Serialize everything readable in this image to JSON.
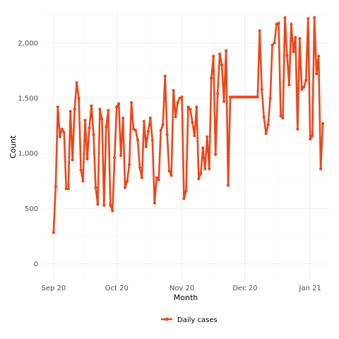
{
  "chart_data": {
    "type": "line",
    "xlabel": "Month",
    "ylabel": "Count",
    "x_start": "2020-09-01",
    "x_end": "2021-01-05",
    "x_range": [
      "2020-08-26",
      "2021-01-10"
    ],
    "ylim": [
      -150,
      2280
    ],
    "y_ticks": [
      0,
      500,
      1000,
      1500,
      2000
    ],
    "y_tick_labels": [
      "0",
      "500",
      "1,000",
      "1,500",
      "2,000"
    ],
    "x_ticks": [
      "2020-09-01",
      "2020-10-01",
      "2020-11-01",
      "2020-12-01",
      "2021-01-01"
    ],
    "x_tick_labels": [
      "Sep 20",
      "Oct 20",
      "Nov 20",
      "Dec 20",
      "Jan 21"
    ],
    "grid": true,
    "legend_position": "bottom",
    "color": "#E8481C",
    "series": [
      {
        "name": "Daily cases",
        "values": [
          285,
          700,
          1420,
          1150,
          1220,
          1190,
          680,
          680,
          1380,
          940,
          1400,
          1640,
          1500,
          850,
          750,
          1300,
          950,
          1230,
          1430,
          1170,
          690,
          540,
          1400,
          1310,
          530,
          1240,
          1390,
          530,
          480,
          960,
          1420,
          1450,
          980,
          1320,
          690,
          750,
          900,
          1460,
          1220,
          1210,
          1120,
          870,
          780,
          1290,
          1060,
          1200,
          1320,
          1120,
          550,
          780,
          760,
          1210,
          1260,
          1700,
          1170,
          840,
          800,
          1570,
          1330,
          1460,
          1500,
          1510,
          590,
          660,
          1420,
          1400,
          1280,
          1160,
          1420,
          770,
          820,
          1050,
          860,
          1150,
          860,
          1680,
          1880,
          990,
          1540,
          1900,
          1800,
          1470,
          1930,
          710,
          1510,
          1510,
          1510,
          1510,
          1510,
          1510,
          1510,
          1510,
          1510,
          1510,
          1510,
          1510,
          1510,
          1510,
          2110,
          1580,
          1330,
          1180,
          1260,
          1500,
          1980,
          2000,
          2170,
          2180,
          1340,
          1320,
          2230,
          1890,
          1620,
          2170,
          1920,
          2050,
          1220,
          2040,
          1580,
          1600,
          1660,
          2220,
          1130,
          1160,
          2230,
          1720,
          1880,
          860,
          1270
        ]
      }
    ]
  }
}
